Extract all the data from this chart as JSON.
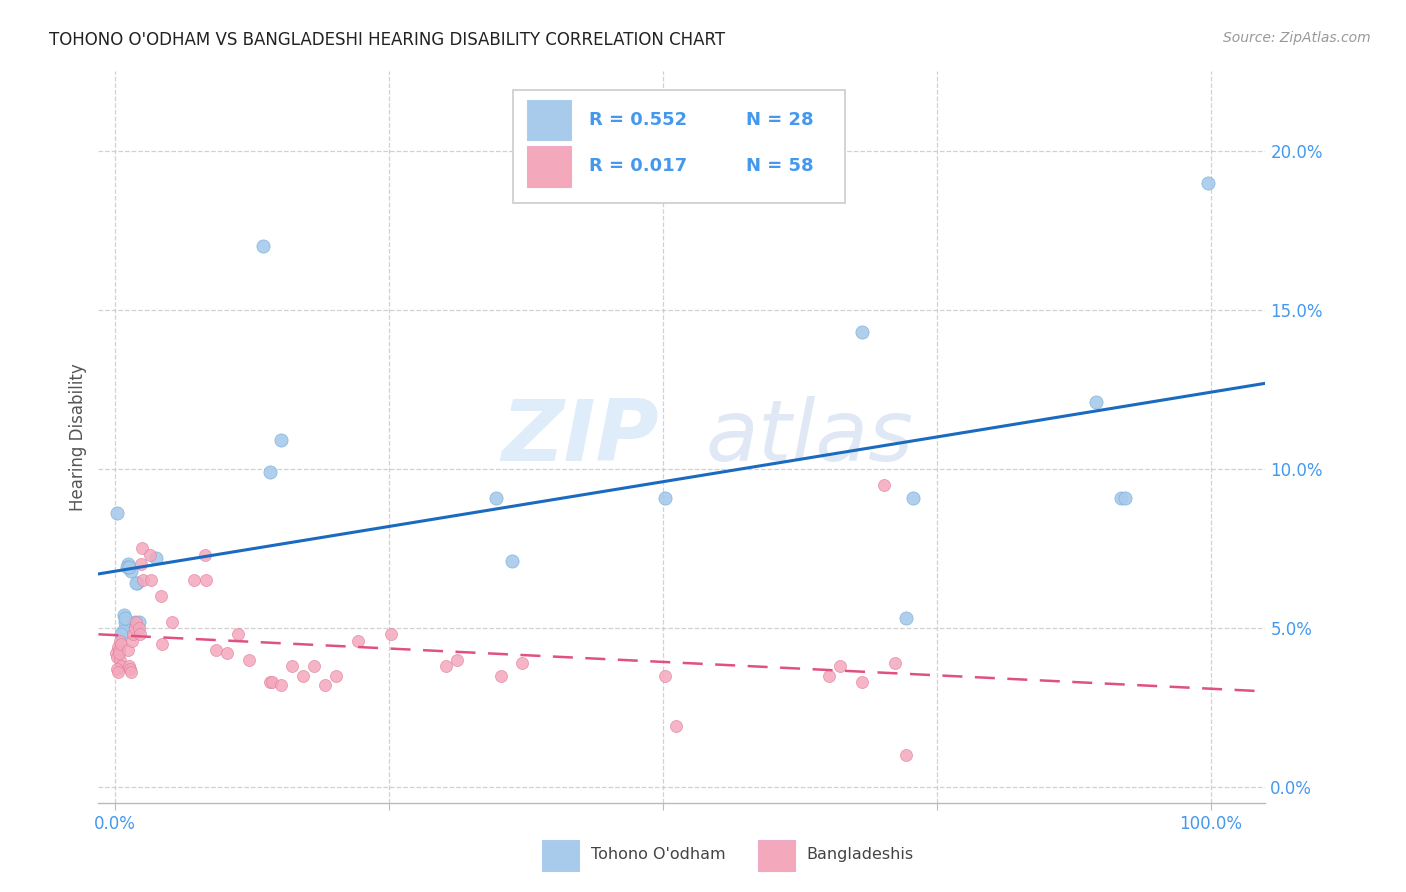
{
  "title": "TOHONO O'ODHAM VS BANGLADESHI HEARING DISABILITY CORRELATION CHART",
  "source": "Source: ZipAtlas.com",
  "ylabel": "Hearing Disability",
  "legend_label1": "Tohono O'odham",
  "legend_label2": "Bangladeshis",
  "R1": "0.552",
  "N1": "28",
  "R2": "0.017",
  "N2": "58",
  "blue_color": "#a8caeb",
  "pink_color": "#f4a8bc",
  "line_blue": "#1a6bbf",
  "line_pink": "#e05080",
  "background": "#ffffff",
  "grid_color": "#cccccc",
  "watermark_zip": "ZIP",
  "watermark_atlas": "atlas",
  "ytick_color": "#4499ee",
  "xtick_color": "#4499ee",
  "blue_points_x": [
    0.015,
    0.038,
    0.002,
    0.008,
    0.009,
    0.007,
    0.006,
    0.018,
    0.009,
    0.02,
    0.019,
    0.012,
    0.135,
    0.142,
    0.152,
    0.348,
    0.362,
    0.502,
    0.682,
    0.722,
    0.728,
    0.895,
    0.918,
    0.922,
    0.998,
    0.022,
    0.011,
    0.013
  ],
  "blue_points_y": [
    0.068,
    0.072,
    0.086,
    0.054,
    0.052,
    0.049,
    0.048,
    0.052,
    0.053,
    0.064,
    0.064,
    0.07,
    0.17,
    0.099,
    0.109,
    0.091,
    0.071,
    0.091,
    0.143,
    0.053,
    0.091,
    0.121,
    0.091,
    0.091,
    0.19,
    0.052,
    0.069,
    0.069
  ],
  "pink_points_x": [
    0.001,
    0.002,
    0.003,
    0.004,
    0.005,
    0.006,
    0.002,
    0.003,
    0.004,
    0.005,
    0.006,
    0.012,
    0.013,
    0.014,
    0.015,
    0.016,
    0.017,
    0.018,
    0.019,
    0.022,
    0.023,
    0.024,
    0.025,
    0.026,
    0.032,
    0.033,
    0.042,
    0.043,
    0.052,
    0.072,
    0.082,
    0.083,
    0.092,
    0.102,
    0.112,
    0.122,
    0.142,
    0.143,
    0.152,
    0.162,
    0.172,
    0.182,
    0.192,
    0.202,
    0.222,
    0.252,
    0.302,
    0.312,
    0.352,
    0.372,
    0.502,
    0.512,
    0.652,
    0.662,
    0.682,
    0.702,
    0.712,
    0.722
  ],
  "pink_points_y": [
    0.042,
    0.041,
    0.044,
    0.043,
    0.04,
    0.038,
    0.037,
    0.036,
    0.042,
    0.046,
    0.045,
    0.043,
    0.038,
    0.037,
    0.036,
    0.046,
    0.048,
    0.05,
    0.052,
    0.05,
    0.048,
    0.07,
    0.075,
    0.065,
    0.073,
    0.065,
    0.06,
    0.045,
    0.052,
    0.065,
    0.073,
    0.065,
    0.043,
    0.042,
    0.048,
    0.04,
    0.033,
    0.033,
    0.032,
    0.038,
    0.035,
    0.038,
    0.032,
    0.035,
    0.046,
    0.048,
    0.038,
    0.04,
    0.035,
    0.039,
    0.035,
    0.019,
    0.035,
    0.038,
    0.033,
    0.095,
    0.039,
    0.01
  ],
  "xlim": [
    -0.015,
    1.05
  ],
  "ylim": [
    -0.005,
    0.225
  ],
  "yticks": [
    0.0,
    0.05,
    0.1,
    0.15,
    0.2
  ],
  "xticks": [
    0.0,
    0.25,
    0.5,
    0.75,
    1.0
  ]
}
